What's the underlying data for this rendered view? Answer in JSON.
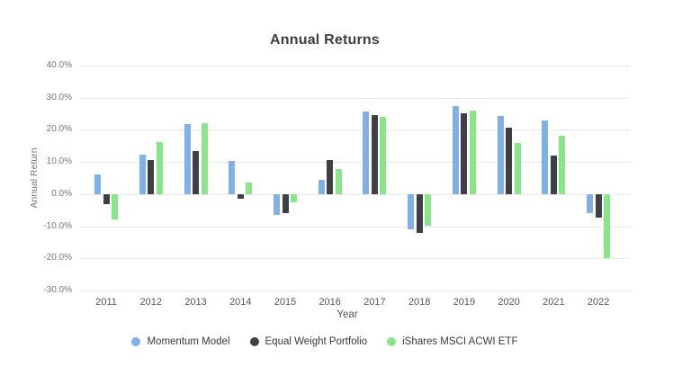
{
  "title": "Annual Returns",
  "chart_data": {
    "type": "bar",
    "title": "Annual Returns",
    "categories": [
      "2011",
      "2012",
      "2013",
      "2014",
      "2015",
      "2016",
      "2017",
      "2018",
      "2019",
      "2020",
      "2021",
      "2022"
    ],
    "series": [
      {
        "name": "Momentum Model",
        "color": "#7FB1E8",
        "values": [
          6.0,
          12.4,
          21.8,
          10.2,
          -6.4,
          4.5,
          25.8,
          -11.1,
          27.3,
          24.3,
          22.9,
          -5.8
        ]
      },
      {
        "name": "Equal Weight Portfolio",
        "color": "#3F4046",
        "values": [
          -3.2,
          10.5,
          13.4,
          -1.5,
          -5.9,
          10.6,
          24.6,
          -12.2,
          25.2,
          20.6,
          12.0,
          -7.2
        ]
      },
      {
        "name": "iShares MSCI ACWI ETF",
        "color": "#88E588",
        "values": [
          -8.0,
          16.3,
          22.1,
          3.5,
          -2.5,
          7.9,
          24.0,
          -9.8,
          26.1,
          16.0,
          18.3,
          -19.9
        ]
      }
    ],
    "xlabel": "Year",
    "ylabel": "Annual Return",
    "ylim": [
      -30,
      40
    ],
    "yticks": [
      40,
      30,
      20,
      10,
      0,
      -10,
      -20,
      -30
    ],
    "ytick_labels": [
      "40.0%",
      "30.0%",
      "20.0%",
      "10.0%",
      "0.0%",
      "-10.0%",
      "-20.0%",
      "-30.0%"
    ],
    "grid": true,
    "legend_position": "bottom"
  }
}
